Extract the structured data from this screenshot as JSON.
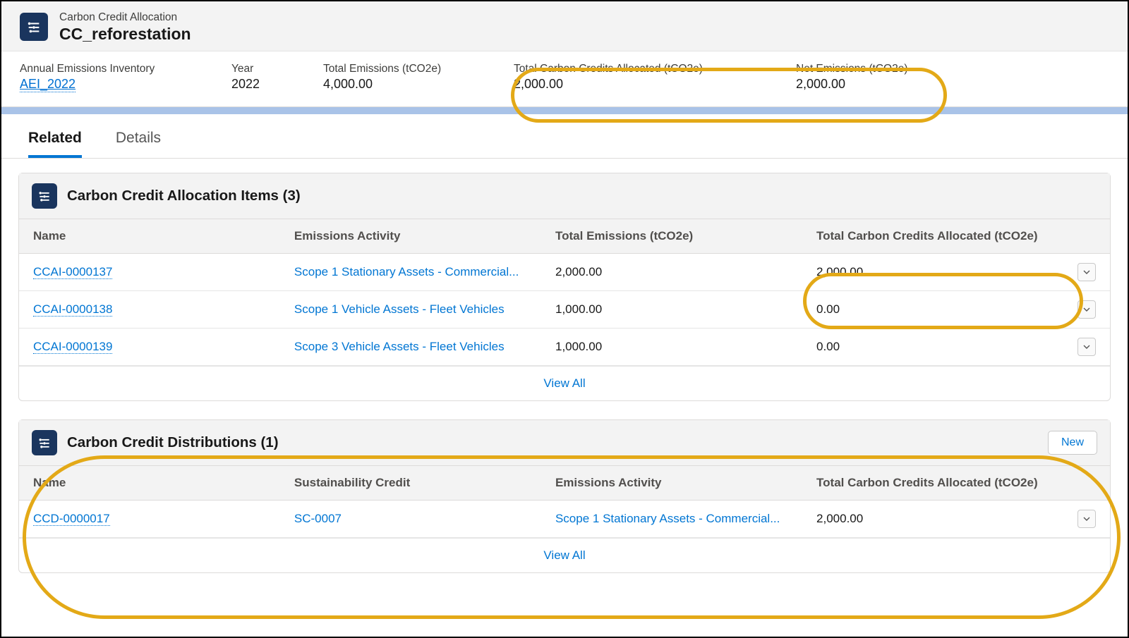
{
  "colors": {
    "icon_bg": "#1a355e",
    "link": "#0176d3",
    "highlight": "#e3a917",
    "header_bg": "#f3f3f3",
    "blue_strip": "#a9c3e8"
  },
  "header": {
    "object_label": "Carbon Credit Allocation",
    "record_name": "CC_reforestation"
  },
  "summary": {
    "inventory_label": "Annual Emissions Inventory",
    "inventory_value": "AEI_2022",
    "year_label": "Year",
    "year_value": "2022",
    "total_emissions_label": "Total Emissions (tCO2e)",
    "total_emissions_value": "4,000.00",
    "credits_allocated_label": "Total Carbon Credits Allocated (tCO2e)",
    "credits_allocated_value": "2,000.00",
    "net_emissions_label": "Net Emissions (tCO2e)",
    "net_emissions_value": "2,000.00"
  },
  "tabs": {
    "related": "Related",
    "details": "Details"
  },
  "allocation_items": {
    "title": "Carbon Credit Allocation Items (3)",
    "columns": {
      "name": "Name",
      "activity": "Emissions Activity",
      "total": "Total Emissions (tCO2e)",
      "allocated": "Total Carbon Credits Allocated (tCO2e)"
    },
    "rows": [
      {
        "name": "CCAI-0000137",
        "activity": "Scope 1 Stationary Assets - Commercial...",
        "total": "2,000.00",
        "allocated": "2,000.00"
      },
      {
        "name": "CCAI-0000138",
        "activity": "Scope 1 Vehicle Assets - Fleet Vehicles",
        "total": "1,000.00",
        "allocated": "0.00"
      },
      {
        "name": "CCAI-0000139",
        "activity": "Scope 3 Vehicle Assets - Fleet Vehicles",
        "total": "1,000.00",
        "allocated": "0.00"
      }
    ],
    "view_all": "View All"
  },
  "distributions": {
    "title": "Carbon Credit Distributions (1)",
    "new_label": "New",
    "columns": {
      "name": "Name",
      "credit": "Sustainability Credit",
      "activity": "Emissions Activity",
      "allocated": "Total Carbon Credits Allocated (tCO2e)"
    },
    "rows": [
      {
        "name": "CCD-0000017",
        "credit": "SC-0007",
        "activity": "Scope 1 Stationary Assets - Commercial...",
        "allocated": "2,000.00"
      }
    ],
    "view_all": "View All"
  }
}
